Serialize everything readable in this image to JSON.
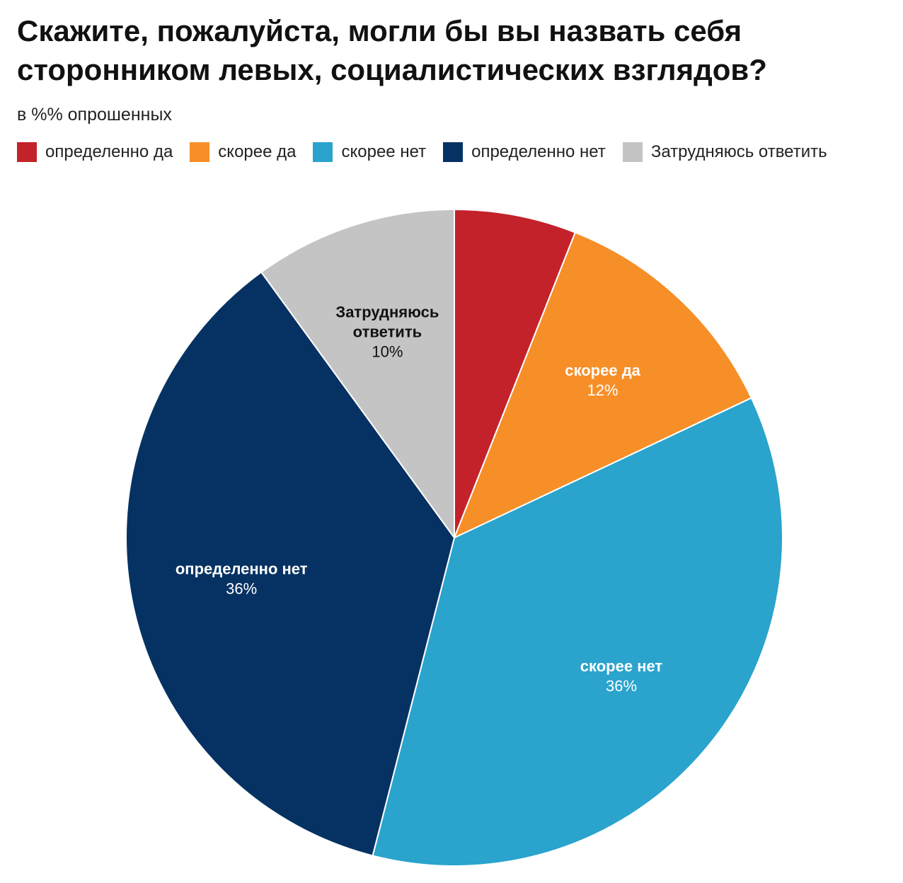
{
  "title": "Скажите, пожалуйста, могли бы вы назвать себя сторонником левых, социалистических взглядов?",
  "subtitle": "в %% опрошенных",
  "colors": {
    "definitely_yes": "#c4222a",
    "rather_yes": "#f68f28",
    "rather_no": "#2aa3cd",
    "definitely_no": "#063263",
    "hard_to_say": "#c4c4c4"
  },
  "legend": [
    {
      "label": "определенно да",
      "color": "#c4222a"
    },
    {
      "label": "скорее да",
      "color": "#f68f28"
    },
    {
      "label": "скорее нет",
      "color": "#2aa3cd"
    },
    {
      "label": "определенно нет",
      "color": "#063263"
    },
    {
      "label": "Затрудняюсь ответить",
      "color": "#c4c4c4"
    }
  ],
  "chart_data": {
    "type": "pie",
    "title": "Скажите, пожалуйста, могли бы вы назвать себя сторонником левых, социалистических взглядов?",
    "subtitle": "в %% опрошенных",
    "legend_position": "top",
    "start": "12 o'clock, clockwise",
    "slices": [
      {
        "label": "определенно да",
        "value": 6,
        "color": "#c4222a",
        "label_lines": [],
        "value_text": "",
        "label_color": "#ffffff"
      },
      {
        "label": "скорее да",
        "value": 12,
        "color": "#f68f28",
        "label_lines": [
          "скорее да"
        ],
        "value_text": "12%",
        "label_color": "#ffffff"
      },
      {
        "label": "скорее нет",
        "value": 36,
        "color": "#2aa3cd",
        "label_lines": [
          "скорее нет"
        ],
        "value_text": "36%",
        "label_color": "#ffffff"
      },
      {
        "label": "определенно нет",
        "value": 36,
        "color": "#063263",
        "label_lines": [
          "определенно нет"
        ],
        "value_text": "36%",
        "label_color": "#ffffff"
      },
      {
        "label": "Затрудняюсь ответить",
        "value": 10,
        "color": "#c4c4c4",
        "label_lines": [
          "Затрудняюсь",
          "ответить"
        ],
        "value_text": "10%",
        "label_color": "#111111"
      }
    ]
  }
}
